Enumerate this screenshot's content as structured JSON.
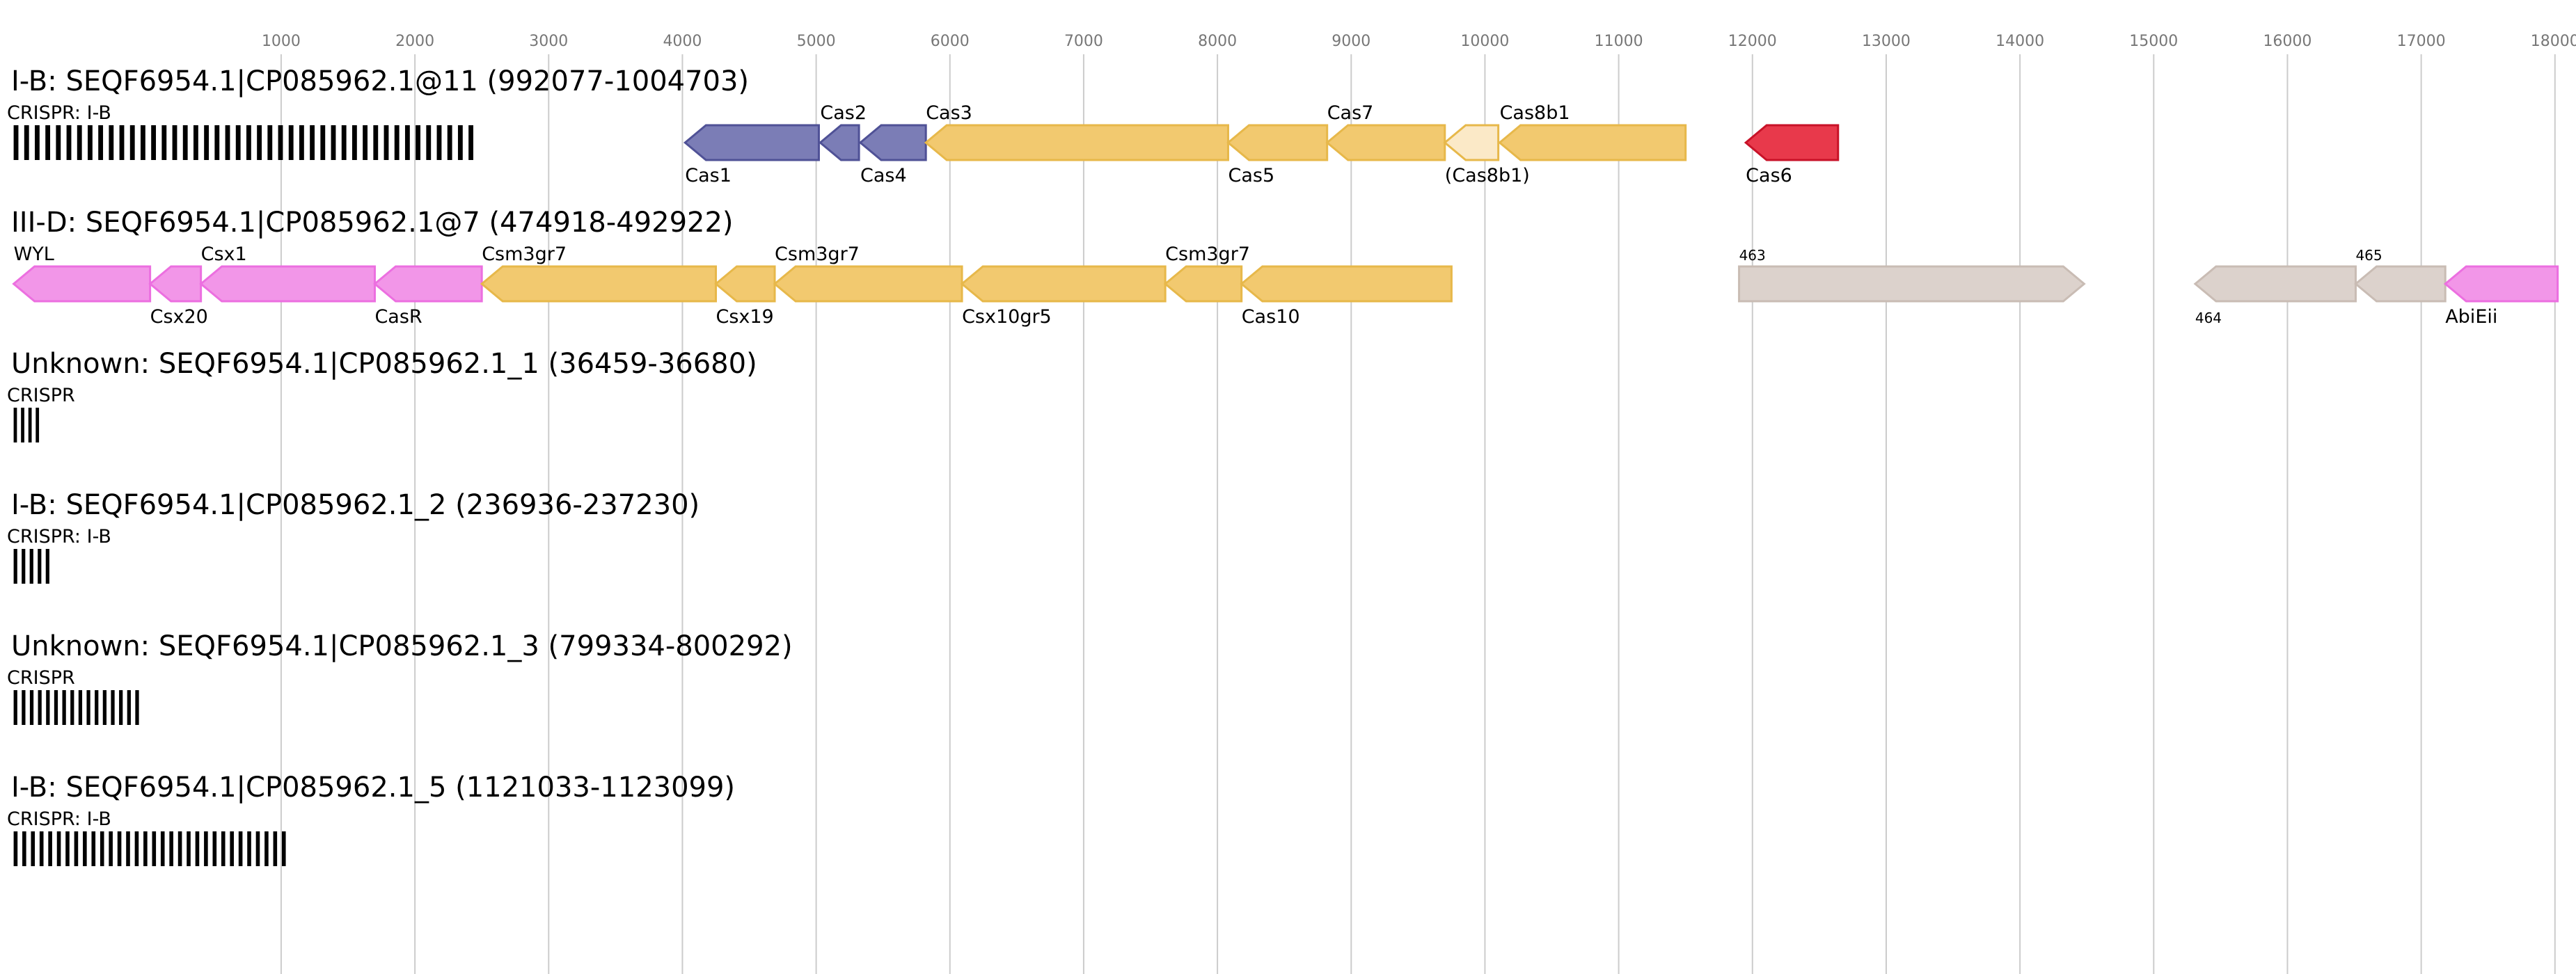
{
  "axis": {
    "ticks": [
      1000,
      2000,
      3000,
      4000,
      5000,
      6000,
      7000,
      8000,
      9000,
      10000,
      11000,
      12000,
      13000,
      14000,
      15000,
      16000,
      17000,
      18000
    ],
    "domain": [
      -1050,
      18100
    ]
  },
  "colors": {
    "adaptation": "#7b7db6",
    "interference": "#f2c96f",
    "effector": "#f296e8",
    "other": "#dcd2cc",
    "cas6": "#e8394b",
    "grid": "#cccccc",
    "array": "#000000"
  },
  "tracks": [
    {
      "title": "I-B: SEQF6954.1|CP085962.1@11 (992077-1004703)",
      "arrays": [
        {
          "label": "CRISPR: I-B",
          "start": -1000,
          "end": 2480,
          "repeats": 44
        }
      ],
      "genes": [
        {
          "label": "Cas1",
          "start": 4020,
          "end": 5020,
          "strand": "-",
          "color": "adaptation",
          "label_pos": "below"
        },
        {
          "label": "Cas2",
          "start": 5030,
          "end": 5320,
          "strand": "-",
          "color": "adaptation",
          "label_pos": "above"
        },
        {
          "label": "Cas4",
          "start": 5330,
          "end": 5820,
          "strand": "-",
          "color": "adaptation",
          "label_pos": "below"
        },
        {
          "label": "Cas3",
          "start": 5820,
          "end": 8080,
          "strand": "-",
          "color": "interference",
          "label_pos": "above"
        },
        {
          "label": "Cas5",
          "start": 8080,
          "end": 8820,
          "strand": "-",
          "color": "interference",
          "label_pos": "below"
        },
        {
          "label": "Cas7",
          "start": 8820,
          "end": 9700,
          "strand": "-",
          "color": "interference",
          "label_pos": "above"
        },
        {
          "label": "(Cas8b1)",
          "start": 9700,
          "end": 10100,
          "strand": "-",
          "color": "interference",
          "faded": true,
          "label_pos": "below"
        },
        {
          "label": "Cas8b1",
          "start": 10110,
          "end": 11500,
          "strand": "-",
          "color": "interference",
          "label_pos": "above"
        },
        {
          "label": "Cas6",
          "start": 11950,
          "end": 12640,
          "strand": "-",
          "color": "cas6",
          "label_pos": "below"
        }
      ]
    },
    {
      "title": "III-D: SEQF6954.1|CP085962.1@7 (474918-492922)",
      "arrays": [],
      "genes": [
        {
          "label": "WYL",
          "start": -1000,
          "end": 20,
          "strand": "-",
          "color": "effector",
          "label_pos": "above"
        },
        {
          "label": "Csx20",
          "start": 20,
          "end": 400,
          "strand": "-",
          "color": "effector",
          "label_pos": "below"
        },
        {
          "label": "Csx1",
          "start": 400,
          "end": 1700,
          "strand": "-",
          "color": "effector",
          "label_pos": "above"
        },
        {
          "label": "CasR",
          "start": 1700,
          "end": 2500,
          "strand": "-",
          "color": "effector",
          "label_pos": "below"
        },
        {
          "label": "Csm3gr7",
          "start": 2500,
          "end": 4250,
          "strand": "-",
          "color": "interference",
          "label_pos": "above"
        },
        {
          "label": "Csx19",
          "start": 4250,
          "end": 4690,
          "strand": "-",
          "color": "interference",
          "label_pos": "below"
        },
        {
          "label": "Csm3gr7",
          "start": 4690,
          "end": 6090,
          "strand": "-",
          "color": "interference",
          "label_pos": "above"
        },
        {
          "label": "Csx10gr5",
          "start": 6090,
          "end": 7610,
          "strand": "-",
          "color": "interference",
          "label_pos": "below"
        },
        {
          "label": "Csm3gr7",
          "start": 7610,
          "end": 8180,
          "strand": "-",
          "color": "interference",
          "label_pos": "above"
        },
        {
          "label": "Cas10",
          "start": 8180,
          "end": 9750,
          "strand": "-",
          "color": "interference",
          "label_pos": "below"
        },
        {
          "label": "463",
          "start": 11900,
          "end": 14480,
          "strand": "+",
          "color": "other",
          "label_pos": "above",
          "small": true
        },
        {
          "label": "464",
          "start": 15310,
          "end": 16510,
          "strand": "-",
          "color": "other",
          "label_pos": "below",
          "small": true
        },
        {
          "label": "465",
          "start": 16510,
          "end": 17180,
          "strand": "-",
          "color": "other",
          "label_pos": "above",
          "small": true
        },
        {
          "label": "AbiEii",
          "start": 17180,
          "end": 18020,
          "strand": "-",
          "color": "effector",
          "label_pos": "below"
        }
      ]
    },
    {
      "title": "Unknown: SEQF6954.1|CP085962.1_1 (36459-36680)",
      "arrays": [
        {
          "label": "CRISPR",
          "start": -1000,
          "end": -780,
          "repeats": 4
        }
      ],
      "genes": []
    },
    {
      "title": "I-B: SEQF6954.1|CP085962.1_2 (236936-237230)",
      "arrays": [
        {
          "label": "CRISPR: I-B",
          "start": -1000,
          "end": -700,
          "repeats": 5
        }
      ],
      "genes": []
    },
    {
      "title": "Unknown: SEQF6954.1|CP085962.1_3 (799334-800292)",
      "arrays": [
        {
          "label": "CRISPR",
          "start": -1000,
          "end": -30,
          "repeats": 16
        }
      ],
      "genes": []
    },
    {
      "title": "I-B: SEQF6954.1|CP085962.1_5 (1121033-1123099)",
      "arrays": [
        {
          "label": "CRISPR: I-B",
          "start": -1000,
          "end": 1070,
          "repeats": 32
        }
      ],
      "genes": []
    }
  ]
}
